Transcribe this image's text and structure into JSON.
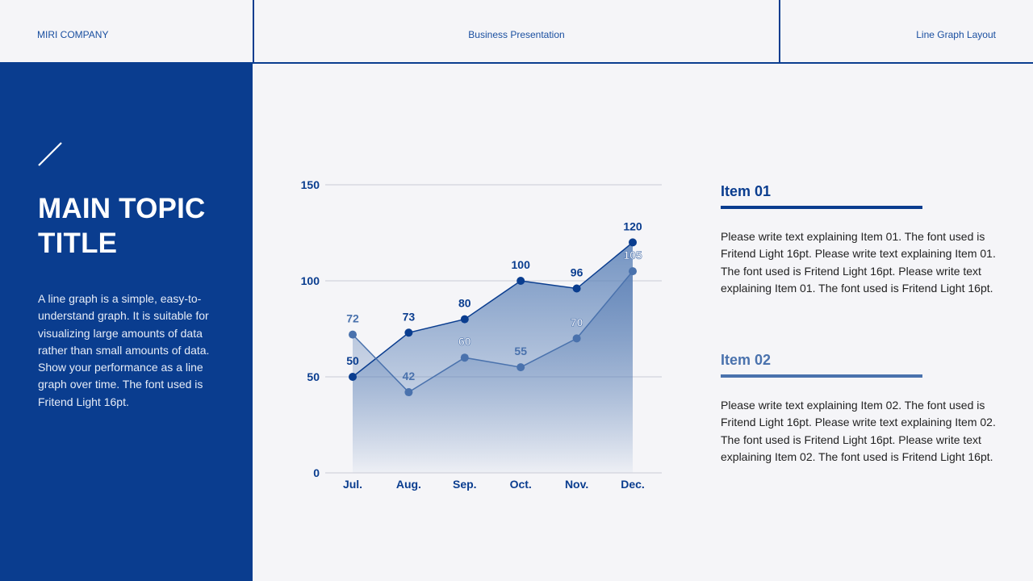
{
  "header": {
    "company": "MIRI COMPANY",
    "presentation": "Business Presentation",
    "layout_name": "Line Graph Layout"
  },
  "sidebar": {
    "title": "MAIN TOPIC TITLE",
    "description": "A line graph is a simple, easy-to-understand graph. It is suitable for visualizing large amounts of data rather than small amounts of data. Show your performance as a line graph over time. The font used is Fritend Light 16pt."
  },
  "items": [
    {
      "title": "Item 01",
      "text": "Please write text explaining Item 01. The font used is Fritend Light 16pt. Please write text explaining Item 01. The font used is Fritend Light 16pt. Please write text explaining Item 01. The font used is Fritend Light 16pt."
    },
    {
      "title": "Item 02",
      "text": "Please write text explaining Item 02. The font used is Fritend Light 16pt. Please write text explaining Item 02. The font used is Fritend Light 16pt. Please write text explaining Item 02. The font used is Fritend Light 16pt."
    }
  ],
  "colors": {
    "primary": "#0a3d8f",
    "secondary": "#4a72ad",
    "background": "#f5f5f8"
  },
  "chart_data": {
    "type": "line",
    "categories": [
      "Jul.",
      "Aug.",
      "Sep.",
      "Oct.",
      "Nov.",
      "Dec."
    ],
    "series": [
      {
        "values": [
          50,
          73,
          80,
          100,
          96,
          120
        ],
        "color": "#0a3d8f"
      },
      {
        "values": [
          72,
          42,
          60,
          55,
          70,
          105
        ],
        "color": "#4a72ad"
      }
    ],
    "yticks": [
      "0",
      "50",
      "100",
      "150"
    ],
    "ylim": [
      0,
      150
    ],
    "grid": true,
    "area_fill": true,
    "title": "",
    "xlabel": "",
    "ylabel": ""
  }
}
